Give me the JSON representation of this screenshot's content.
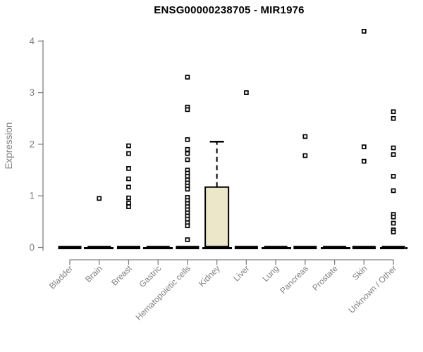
{
  "chart_data": {
    "type": "boxplot",
    "title": "ENSG00000238705 - MIR1976",
    "ylabel": "Expression",
    "xlabel": "",
    "ylim": [
      0,
      4.3
    ],
    "yticks": [
      0,
      1,
      2,
      3,
      4
    ],
    "grid": false,
    "legend": "none",
    "colors": {
      "box_fill": "#ece7c9",
      "box_line": "#000000",
      "axis_text": "#808080",
      "axis_line": "#808080"
    },
    "categories": [
      "Bladder",
      "Brain",
      "Breast",
      "Gastric",
      "Hematopoietic cells",
      "Kidney",
      "Liver",
      "Lung",
      "Pancreas",
      "Prostate",
      "Skin",
      "Unknown / Other"
    ],
    "boxes": [
      {
        "category": "Bladder",
        "q1": 0,
        "median": 0,
        "q3": 0,
        "whisker_low": 0,
        "whisker_high": 0,
        "outliers": []
      },
      {
        "category": "Brain",
        "q1": 0,
        "median": 0,
        "q3": 0,
        "whisker_low": 0,
        "whisker_high": 0,
        "outliers": [
          0.95
        ]
      },
      {
        "category": "Breast",
        "q1": 0,
        "median": 0,
        "q3": 0,
        "whisker_low": 0,
        "whisker_high": 0,
        "outliers": [
          1.97,
          1.82,
          1.53,
          1.33,
          1.17,
          0.96,
          0.86,
          0.79
        ]
      },
      {
        "category": "Gastric",
        "q1": 0,
        "median": 0,
        "q3": 0,
        "whisker_low": 0,
        "whisker_high": 0,
        "outliers": []
      },
      {
        "category": "Hematopoietic cells",
        "q1": 0,
        "median": 0,
        "q3": 0,
        "whisker_low": 0,
        "whisker_high": 0,
        "outliers": [
          3.3,
          2.72,
          2.67,
          2.09,
          1.9,
          1.82,
          1.7,
          1.5,
          1.44,
          1.38,
          1.31,
          1.25,
          1.19,
          1.13,
          0.97,
          0.91,
          0.85,
          0.79,
          0.73,
          0.67,
          0.61,
          0.55,
          0.48,
          0.42,
          0.15
        ]
      },
      {
        "category": "Kidney",
        "q1": 0,
        "median": 0,
        "q3": 1.17,
        "whisker_low": 0,
        "whisker_high": 2.05,
        "outliers": []
      },
      {
        "category": "Liver",
        "q1": 0,
        "median": 0,
        "q3": 0,
        "whisker_low": 0,
        "whisker_high": 0,
        "outliers": [
          3.0
        ]
      },
      {
        "category": "Lung",
        "q1": 0,
        "median": 0,
        "q3": 0,
        "whisker_low": 0,
        "whisker_high": 0,
        "outliers": []
      },
      {
        "category": "Pancreas",
        "q1": 0,
        "median": 0,
        "q3": 0,
        "whisker_low": 0,
        "whisker_high": 0,
        "outliers": [
          2.15,
          1.78
        ]
      },
      {
        "category": "Prostate",
        "q1": 0,
        "median": 0,
        "q3": 0,
        "whisker_low": 0,
        "whisker_high": 0,
        "outliers": []
      },
      {
        "category": "Skin",
        "q1": 0,
        "median": 0,
        "q3": 0,
        "whisker_low": 0,
        "whisker_high": 0,
        "outliers": [
          4.19,
          1.95,
          1.67
        ]
      },
      {
        "category": "Unknown / Other",
        "q1": 0,
        "median": 0,
        "q3": 0,
        "whisker_low": 0,
        "whisker_high": 0,
        "outliers": [
          2.63,
          2.5,
          1.93,
          1.8,
          1.38,
          1.1,
          0.64,
          0.59,
          0.47,
          0.34,
          0.3
        ]
      }
    ]
  }
}
